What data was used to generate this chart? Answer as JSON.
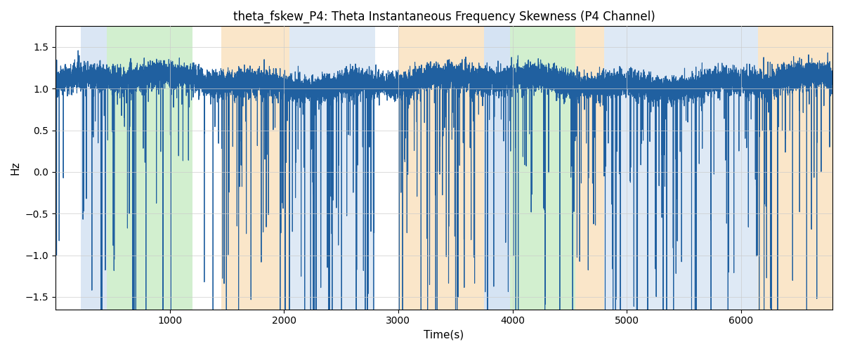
{
  "title": "theta_fskew_P4: Theta Instantaneous Frequency Skewness (P4 Channel)",
  "xlabel": "Time(s)",
  "ylabel": "Hz",
  "ylim": [
    -1.65,
    1.75
  ],
  "xlim": [
    0,
    6800
  ],
  "line_color": "#2060a0",
  "line_width": 0.8,
  "bg_regions": [
    {
      "xmin": 220,
      "xmax": 450,
      "color": "#adc8e8",
      "alpha": 0.45
    },
    {
      "xmin": 450,
      "xmax": 1200,
      "color": "#90d888",
      "alpha": 0.4
    },
    {
      "xmin": 1450,
      "xmax": 2050,
      "color": "#f5c888",
      "alpha": 0.45
    },
    {
      "xmin": 2050,
      "xmax": 2800,
      "color": "#adc8e8",
      "alpha": 0.4
    },
    {
      "xmin": 3000,
      "xmax": 3750,
      "color": "#f5c888",
      "alpha": 0.45
    },
    {
      "xmin": 3750,
      "xmax": 3980,
      "color": "#adc8e8",
      "alpha": 0.5
    },
    {
      "xmin": 3980,
      "xmax": 4550,
      "color": "#90d888",
      "alpha": 0.4
    },
    {
      "xmin": 4550,
      "xmax": 4800,
      "color": "#f5c888",
      "alpha": 0.45
    },
    {
      "xmin": 4800,
      "xmax": 6150,
      "color": "#adc8e8",
      "alpha": 0.4
    },
    {
      "xmin": 6150,
      "xmax": 6800,
      "color": "#f5c888",
      "alpha": 0.45
    }
  ],
  "grid_color": "#cccccc",
  "grid_alpha": 0.7,
  "seed": 12345,
  "n_points": 13400,
  "mean_signal": 1.08,
  "noise_std": 0.08
}
